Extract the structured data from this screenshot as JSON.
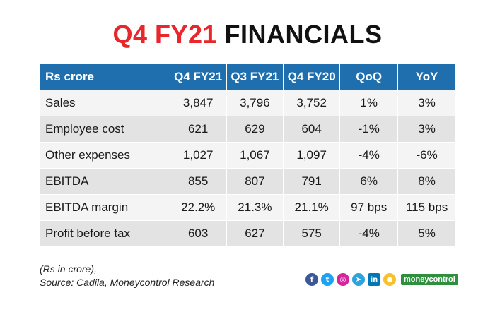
{
  "title": {
    "part1": "Q4 FY21",
    "part2": "FINANCIALS"
  },
  "table": {
    "headers": [
      "Rs crore",
      "Q4 FY21",
      "Q3 FY21",
      "Q4 FY20",
      "QoQ",
      "YoY"
    ],
    "rows": [
      [
        "Sales",
        "3,847",
        "3,796",
        "3,752",
        "1%",
        "3%"
      ],
      [
        "Employee cost",
        "621",
        "629",
        "604",
        "-1%",
        "3%"
      ],
      [
        "Other expenses",
        "1,027",
        "1,067",
        "1,097",
        "-4%",
        "-6%"
      ],
      [
        "EBITDA",
        "855",
        "807",
        "791",
        "6%",
        "8%"
      ],
      [
        "EBITDA margin",
        "22.2%",
        "21.3%",
        "21.1%",
        "97 bps",
        "115 bps"
      ],
      [
        "Profit before tax",
        "603",
        "627",
        "575",
        "-4%",
        "5%"
      ]
    ]
  },
  "footnote": {
    "line1": "(Rs in crore),",
    "line2": "Source: Cadila, Moneycontrol Research"
  },
  "social": {
    "icons": [
      {
        "name": "facebook-icon",
        "glyph": "f",
        "color": "#3b5998",
        "shape": "round"
      },
      {
        "name": "twitter-icon",
        "glyph": "t",
        "color": "#1da1f2",
        "shape": "round"
      },
      {
        "name": "instagram-icon",
        "glyph": "◎",
        "color": "#d6249f",
        "shape": "round"
      },
      {
        "name": "telegram-icon",
        "glyph": "➤",
        "color": "#2aa3de",
        "shape": "round"
      },
      {
        "name": "linkedin-icon",
        "glyph": "in",
        "color": "#0077b5",
        "shape": "square"
      },
      {
        "name": "koo-icon",
        "glyph": "●",
        "color": "#f6c12b",
        "shape": "round"
      }
    ],
    "brand": {
      "pre": "money",
      "post": "control"
    }
  }
}
